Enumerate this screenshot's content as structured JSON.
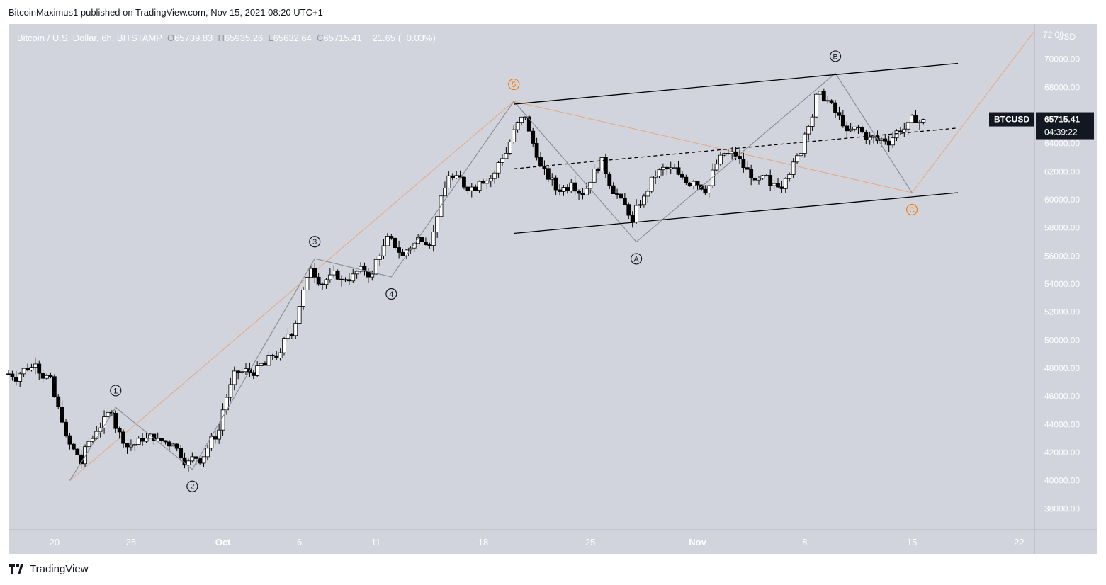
{
  "publisher_line": "BitcoinMaximus1 published on TradingView.com, Nov 15, 2021 08:20 UTC+1",
  "header": {
    "symbol_desc": "Bitcoin / U.S. Dollar, 6h, BITSTAMP",
    "open_key": "O",
    "open": "65739.83",
    "high_key": "H",
    "high": "65935.26",
    "low_key": "L",
    "low": "65632.64",
    "close_key": "C",
    "close": "65715.41",
    "change": "−21.65 (−0.03%)"
  },
  "price_axis": {
    "currency": "USD",
    "top_partial": "72 00",
    "ticks": [
      "70000.00",
      "68000.00",
      "66000.00",
      "64000.00",
      "62000.00",
      "60000.00",
      "58000.00",
      "56000.00",
      "54000.00",
      "52000.00",
      "50000.00",
      "48000.00",
      "46000.00",
      "44000.00",
      "42000.00",
      "40000.00",
      "38000.00"
    ]
  },
  "price_label": {
    "ticker": "BTCUSD",
    "price": "65715.41",
    "countdown": "04:39:22"
  },
  "time_axis": {
    "ticks": [
      {
        "label": "20",
        "bold": false
      },
      {
        "label": "25",
        "bold": false
      },
      {
        "label": "Oct",
        "bold": true
      },
      {
        "label": "6",
        "bold": false
      },
      {
        "label": "11",
        "bold": false
      },
      {
        "label": "18",
        "bold": false
      },
      {
        "label": "25",
        "bold": false
      },
      {
        "label": "Nov",
        "bold": true
      },
      {
        "label": "8",
        "bold": false
      },
      {
        "label": "15",
        "bold": false
      },
      {
        "label": "22",
        "bold": false
      }
    ]
  },
  "wave_labels": [
    {
      "text": "1",
      "color": "#131722"
    },
    {
      "text": "2",
      "color": "#131722"
    },
    {
      "text": "3",
      "color": "#131722"
    },
    {
      "text": "4",
      "color": "#131722"
    },
    {
      "text": "5",
      "color": "#f57c00"
    },
    {
      "text": "A",
      "color": "#131722"
    },
    {
      "text": "B",
      "color": "#131722"
    },
    {
      "text": "C",
      "color": "#f57c00"
    }
  ],
  "footer": {
    "brand": "TradingView"
  },
  "colors": {
    "background": "#d1d4dc",
    "candle_up": "#ffffff",
    "candle_down": "#000000",
    "wave_line": "#8c8f98",
    "projection": "#e8a77c",
    "channel": "#000000"
  },
  "chart_data": {
    "type": "candlestick",
    "title": "Bitcoin / U.S. Dollar, 6h, BITSTAMP",
    "ylabel": "USD",
    "ylim": [
      36500,
      72500
    ],
    "x_range": [
      "2021-09-17",
      "2021-11-23"
    ],
    "close_series": [
      [
        "2021-09-17",
        47600
      ],
      [
        "2021-09-18",
        48300
      ],
      [
        "2021-09-19",
        47400
      ],
      [
        "2021-09-20",
        43200
      ],
      [
        "2021-09-21",
        41200
      ],
      [
        "2021-09-22",
        43500
      ],
      [
        "2021-09-23",
        44800
      ],
      [
        "2021-09-24",
        42400
      ],
      [
        "2021-09-25",
        42800
      ],
      [
        "2021-09-26",
        43000
      ],
      [
        "2021-09-27",
        42600
      ],
      [
        "2021-09-28",
        41400
      ],
      [
        "2021-09-29",
        41700
      ],
      [
        "2021-09-30",
        43600
      ],
      [
        "2021-10-01",
        47800
      ],
      [
        "2021-10-02",
        47700
      ],
      [
        "2021-10-03",
        48200
      ],
      [
        "2021-10-04",
        49100
      ],
      [
        "2021-10-05",
        51200
      ],
      [
        "2021-10-06",
        55100
      ],
      [
        "2021-10-07",
        54300
      ],
      [
        "2021-10-08",
        54300
      ],
      [
        "2021-10-09",
        54900
      ],
      [
        "2021-10-10",
        54700
      ],
      [
        "2021-10-11",
        57400
      ],
      [
        "2021-10-12",
        56000
      ],
      [
        "2021-10-13",
        57300
      ],
      [
        "2021-10-14",
        57700
      ],
      [
        "2021-10-15",
        61700
      ],
      [
        "2021-10-16",
        60900
      ],
      [
        "2021-10-17",
        61300
      ],
      [
        "2021-10-18",
        61900
      ],
      [
        "2021-10-19",
        64100
      ],
      [
        "2021-10-20",
        65900
      ],
      [
        "2021-10-21",
        62400
      ],
      [
        "2021-10-22",
        60700
      ],
      [
        "2021-10-23",
        61200
      ],
      [
        "2021-10-24",
        60800
      ],
      [
        "2021-10-25",
        63000
      ],
      [
        "2021-10-26",
        60400
      ],
      [
        "2021-10-27",
        58400
      ],
      [
        "2021-10-28",
        60600
      ],
      [
        "2021-10-29",
        62300
      ],
      [
        "2021-10-30",
        61800
      ],
      [
        "2021-10-31",
        61300
      ],
      [
        "2021-11-01",
        61000
      ],
      [
        "2021-11-02",
        63300
      ],
      [
        "2021-11-03",
        62900
      ],
      [
        "2021-11-04",
        61400
      ],
      [
        "2021-11-05",
        61000
      ],
      [
        "2021-11-06",
        61500
      ],
      [
        "2021-11-07",
        63300
      ],
      [
        "2021-11-08",
        67500
      ],
      [
        "2021-11-09",
        66900
      ],
      [
        "2021-11-10",
        64900
      ],
      [
        "2021-11-11",
        64800
      ],
      [
        "2021-11-12",
        64200
      ],
      [
        "2021-11-13",
        64400
      ],
      [
        "2021-11-14",
        65500
      ],
      [
        "2021-11-15",
        65715.41
      ]
    ],
    "last_ohlc": {
      "open": 65739.83,
      "high": 65935.26,
      "low": 65632.64,
      "close": 65715.41
    },
    "waves": [
      {
        "label": "1",
        "date": "2021-09-24",
        "price": 45200
      },
      {
        "label": "2",
        "date": "2021-09-29",
        "price": 40800
      },
      {
        "label": "3",
        "date": "2021-10-07",
        "price": 55800
      },
      {
        "label": "4",
        "date": "2021-10-12",
        "price": 54500
      },
      {
        "label": "5",
        "date": "2021-10-20",
        "price": 67000
      },
      {
        "label": "A",
        "date": "2021-10-28",
        "price": 57000
      },
      {
        "label": "B",
        "date": "2021-11-10",
        "price": 69000
      },
      {
        "label": "C",
        "date": "2021-11-15",
        "price": 60500
      }
    ],
    "channel": {
      "upper": [
        [
          "2021-10-20",
          66800
        ],
        [
          "2021-11-18",
          69700
        ]
      ],
      "lower": [
        [
          "2021-10-20",
          57600
        ],
        [
          "2021-11-18",
          60500
        ]
      ],
      "mid": [
        [
          "2021-10-20",
          62200
        ],
        [
          "2021-11-18",
          65100
        ]
      ]
    },
    "projection": [
      [
        "2021-09-21",
        40000
      ],
      [
        "2021-10-20",
        67000
      ],
      [
        "2021-11-15",
        60500
      ],
      [
        "2021-11-23",
        72000
      ]
    ]
  }
}
